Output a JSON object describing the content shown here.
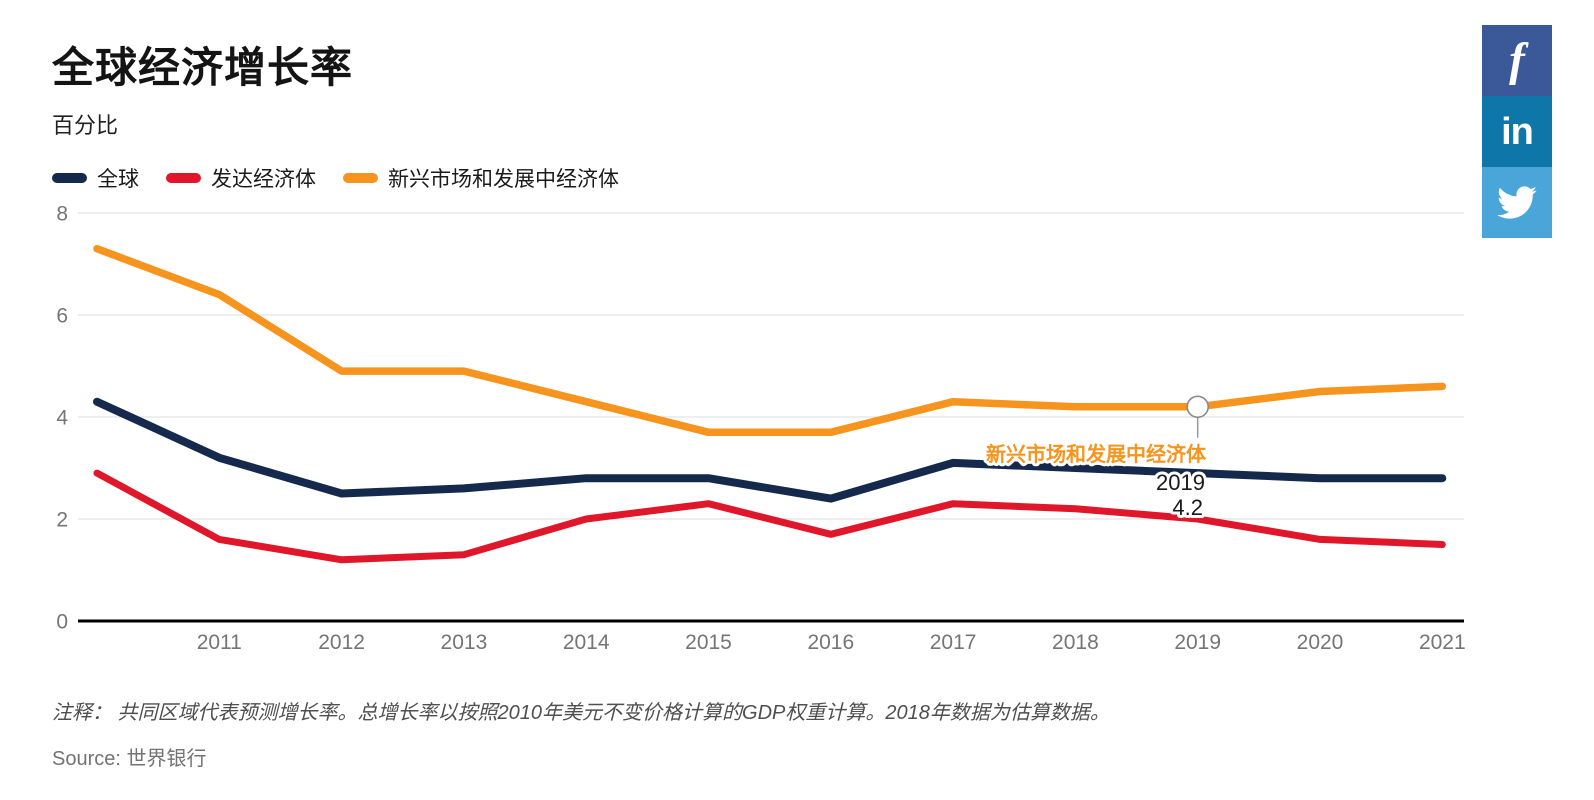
{
  "header": {
    "title": "全球经济增长率",
    "subtitle": "百分比"
  },
  "legend": {
    "items": [
      {
        "label": "全球",
        "color": "#14294b"
      },
      {
        "label": "发达经济体",
        "color": "#e0172b"
      },
      {
        "label": "新兴市场和发展中经济体",
        "color": "#f6941e"
      }
    ]
  },
  "social": {
    "buttons": [
      {
        "name": "facebook",
        "glyph": "f",
        "color": "#3b5998"
      },
      {
        "name": "linkedin",
        "glyph": "in",
        "color": "#0e76a8"
      },
      {
        "name": "twitter",
        "glyph": "",
        "color": "#4aa6d8"
      }
    ]
  },
  "chart_data": {
    "type": "line",
    "x": [
      2010,
      2011,
      2012,
      2013,
      2014,
      2015,
      2016,
      2017,
      2018,
      2019,
      2020,
      2021
    ],
    "series": [
      {
        "name": "全球",
        "color": "#14294b",
        "width": 8,
        "values": [
          4.3,
          3.2,
          2.5,
          2.6,
          2.8,
          2.8,
          2.4,
          3.1,
          3.0,
          2.9,
          2.8,
          2.8
        ]
      },
      {
        "name": "发达经济体",
        "color": "#e0172b",
        "width": 7,
        "values": [
          2.9,
          1.6,
          1.2,
          1.3,
          2.0,
          2.3,
          1.7,
          2.3,
          2.2,
          2.0,
          1.6,
          1.5
        ]
      },
      {
        "name": "新兴市场和发展中经济体",
        "color": "#f6941e",
        "width": 7.5,
        "values": [
          7.3,
          6.4,
          4.9,
          4.9,
          4.3,
          3.7,
          3.7,
          4.3,
          4.2,
          4.2,
          4.5,
          4.6
        ]
      }
    ],
    "title": "全球经济增长率",
    "ylabel": "百分比",
    "ylim": [
      0,
      8
    ],
    "yticks": [
      0,
      2,
      4,
      6,
      8
    ],
    "xticks": [
      2011,
      2012,
      2013,
      2014,
      2015,
      2016,
      2017,
      2018,
      2019,
      2020,
      2021
    ],
    "grid": true,
    "legend_position": "top",
    "annotation": {
      "series": "新兴市场和发展中经济体",
      "x": 2019,
      "value": 4.2,
      "label_series": "新兴市场和发展中经济体",
      "label_year": "2019",
      "label_value": "4.2",
      "series_label_color": "#f6941e",
      "marker_stroke": "#8c8c8c"
    },
    "axis_label_color": "#757575",
    "gridline_color": "#dcdcdc",
    "axis_line_color": "#000000"
  },
  "footer": {
    "note": "注释： 共同区域代表预测增长率。总增长率以按照2010年美元不变价格计算的GDP权重计算。2018年数据为估算数据。",
    "source": "Source: 世界银行"
  }
}
